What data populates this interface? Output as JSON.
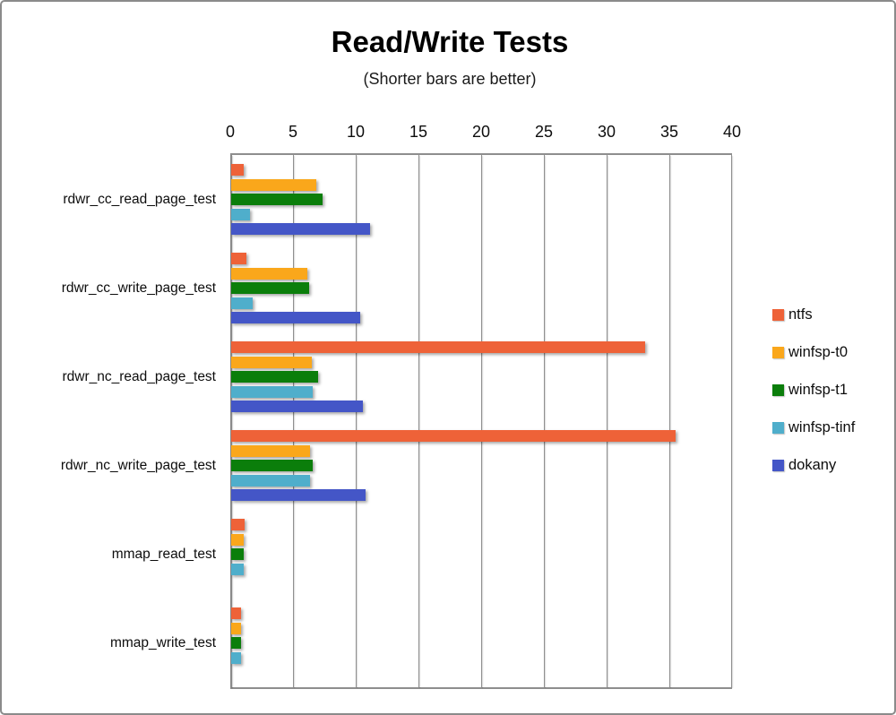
{
  "chart_data": {
    "type": "bar",
    "orientation": "horizontal",
    "title": "Read/Write Tests",
    "subtitle": "(Shorter bars are better)",
    "xlim": [
      0,
      40
    ],
    "ticks": [
      0,
      5,
      10,
      15,
      20,
      25,
      30,
      35,
      40
    ],
    "grid": true,
    "legend_position": "right",
    "note": "Horizontal grouped bar chart; bars grow left-to-right from axis at left; no data labels shown",
    "categories": [
      "rdwr_cc_read_page_test",
      "rdwr_cc_write_page_test",
      "rdwr_nc_read_page_test",
      "rdwr_nc_write_page_test",
      "mmap_read_test",
      "mmap_write_test"
    ],
    "series": [
      {
        "name": "ntfs",
        "color": "#EE6238",
        "values": [
          1.0,
          1.2,
          33.0,
          35.4,
          1.1,
          0.8
        ]
      },
      {
        "name": "winfsp-t0",
        "color": "#FAA71B",
        "values": [
          6.8,
          6.1,
          6.4,
          6.3,
          1.0,
          0.8
        ]
      },
      {
        "name": "winfsp-t1",
        "color": "#0B7E0B",
        "values": [
          7.3,
          6.2,
          6.9,
          6.5,
          1.0,
          0.75
        ]
      },
      {
        "name": "winfsp-tinf",
        "color": "#4FAECB",
        "values": [
          1.5,
          1.7,
          6.5,
          6.3,
          1.0,
          0.75
        ]
      },
      {
        "name": "dokany",
        "color": "#4456C7",
        "values": [
          11.1,
          10.3,
          10.5,
          10.7,
          0,
          0
        ]
      }
    ],
    "style_colors": {
      "axis": "#8e8e8e",
      "gridline": "#8f8f8f",
      "text": "#0d0d0d",
      "background": "#ffffff",
      "frame_border": "#8b8b8b"
    }
  }
}
